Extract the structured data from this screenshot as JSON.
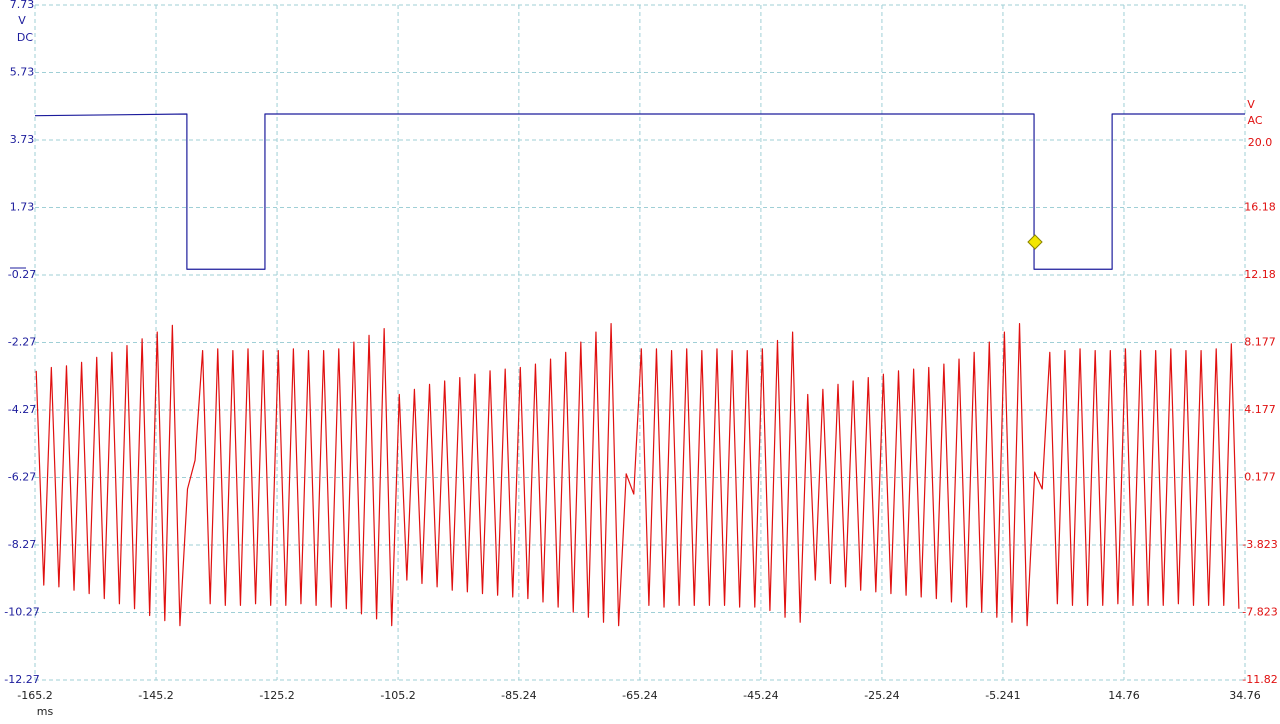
{
  "chart_data": {
    "type": "line",
    "xlabel": "ms",
    "y_label_lines": [
      "V",
      "DC"
    ],
    "y2_label_lines": [
      "V",
      "AC"
    ],
    "xlim": [
      -165.2,
      34.76
    ],
    "xticks": [
      -165.2,
      -145.2,
      -125.2,
      -105.2,
      -85.24,
      -65.24,
      -45.24,
      -25.24,
      -5.241,
      14.76,
      34.76
    ],
    "ylim": [
      -12.27,
      7.73
    ],
    "yticks": [
      7.73,
      5.73,
      3.73,
      1.73,
      -0.27,
      -2.27,
      -4.27,
      -6.27,
      -8.27,
      -10.27,
      -12.27
    ],
    "y2lim": [
      -11.82,
      28.18
    ],
    "y2ticks": [
      {
        "value": 20,
        "label": "20.0"
      },
      16.18,
      12.18,
      8.177,
      4.177,
      0.177,
      -3.823,
      -7.823,
      -11.82
    ],
    "grid": true,
    "series": [
      {
        "color": "#1c1c9c",
        "x": [
          -165.2,
          -140.1,
          -140.1,
          -127.2,
          -127.2,
          -0.1,
          -0.1,
          12.8,
          12.8,
          34.76
        ],
        "values": [
          4.45,
          4.5,
          -0.1,
          -0.1,
          4.5,
          4.5,
          -0.1,
          -0.1,
          4.5,
          4.5
        ]
      },
      {
        "color": "#e01010",
        "axis": "y2",
        "x": [
          -165,
          -163.75,
          -162.5,
          -161.25,
          -160,
          -158.75,
          -157.5,
          -156.25,
          -155,
          -153.75,
          -152.5,
          -151.25,
          -150,
          -148.75,
          -147.5,
          -146.25,
          -145,
          -143.75,
          -142.5,
          -141.25,
          -140,
          -138.75,
          -137.5,
          -136.25,
          -135,
          -133.75,
          -132.5,
          -131.25,
          -130,
          -128.75,
          -127.5,
          -126.25,
          -125,
          -123.75,
          -122.5,
          -121.25,
          -120,
          -118.75,
          -117.5,
          -116.25,
          -115,
          -113.75,
          -112.5,
          -111.25,
          -110,
          -108.75,
          -107.5,
          -106.25,
          -105,
          -103.75,
          -102.5,
          -101.25,
          -100,
          -98.75,
          -97.5,
          -96.25,
          -95,
          -93.75,
          -92.5,
          -91.25,
          -90,
          -88.75,
          -87.5,
          -86.25,
          -85,
          -83.75,
          -82.5,
          -81.25,
          -80,
          -78.75,
          -77.5,
          -76.25,
          -75,
          -73.75,
          -72.5,
          -71.25,
          -70,
          -68.75,
          -67.5,
          -66.25,
          -65,
          -63.75,
          -62.5,
          -61.25,
          -60,
          -58.75,
          -57.5,
          -56.25,
          -55,
          -53.75,
          -52.5,
          -51.25,
          -50,
          -48.75,
          -47.5,
          -46.25,
          -45,
          -43.75,
          -42.5,
          -41.25,
          -40,
          -38.75,
          -37.5,
          -36.25,
          -35,
          -33.75,
          -32.5,
          -31.25,
          -30,
          -28.75,
          -27.5,
          -26.25,
          -25,
          -23.75,
          -22.5,
          -21.25,
          -20,
          -18.75,
          -17.5,
          -16.25,
          -15,
          -13.75,
          -12.5,
          -11.25,
          -10,
          -8.75,
          -7.5,
          -6.25,
          -5,
          -3.75,
          -2.5,
          -1.25,
          0,
          1.25,
          2.5,
          3.75,
          5,
          6.25,
          7.5,
          8.75,
          10,
          11.25,
          12.5,
          13.75,
          15,
          16.25,
          17.5,
          18.75,
          20,
          21.25,
          22.5,
          23.75,
          25,
          26.25,
          27.5,
          28.75,
          30,
          31.25,
          32.5,
          33.75
        ],
        "values": [
          6.5,
          -6.2,
          6.7,
          -6.3,
          6.8,
          -6.5,
          7.0,
          -6.7,
          7.3,
          -7.0,
          7.6,
          -7.3,
          8.0,
          -7.6,
          8.4,
          -8.0,
          8.8,
          -8.3,
          9.2,
          -8.6,
          -0.5,
          1.2,
          7.7,
          -7.3,
          7.8,
          -7.4,
          7.7,
          -7.4,
          7.8,
          -7.3,
          7.7,
          -7.4,
          7.7,
          -7.4,
          7.8,
          -7.3,
          7.7,
          -7.4,
          7.7,
          -7.5,
          7.8,
          -7.6,
          8.2,
          -7.9,
          8.6,
          -8.2,
          9.0,
          -8.6,
          5.1,
          -5.9,
          5.4,
          -6.1,
          5.7,
          -6.3,
          5.9,
          -6.5,
          6.1,
          -6.6,
          6.3,
          -6.7,
          6.5,
          -6.8,
          6.6,
          -6.9,
          6.7,
          -7.0,
          6.9,
          -7.2,
          7.2,
          -7.5,
          7.6,
          -7.8,
          8.2,
          -8.1,
          8.8,
          -8.4,
          9.3,
          -8.6,
          0.4,
          -0.8,
          7.8,
          -7.4,
          7.8,
          -7.5,
          7.7,
          -7.4,
          7.8,
          -7.4,
          7.7,
          -7.4,
          7.8,
          -7.4,
          7.7,
          -7.5,
          7.7,
          -7.5,
          7.8,
          -7.7,
          8.3,
          -8.1,
          8.8,
          -8.4,
          5.1,
          -5.9,
          5.4,
          -6.1,
          5.7,
          -6.3,
          5.9,
          -6.5,
          6.1,
          -6.6,
          6.3,
          -6.7,
          6.5,
          -6.8,
          6.6,
          -6.9,
          6.7,
          -7.0,
          6.9,
          -7.2,
          7.2,
          -7.5,
          7.6,
          -7.8,
          8.2,
          -8.1,
          8.8,
          -8.4,
          9.3,
          -8.6,
          0.5,
          -0.5,
          7.6,
          -7.3,
          7.7,
          -7.4,
          7.8,
          -7.4,
          7.7,
          -7.4,
          7.7,
          -7.3,
          7.8,
          -7.4,
          7.7,
          -7.4,
          7.7,
          -7.4,
          7.8,
          -7.3,
          7.7,
          -7.4,
          7.7,
          -7.4,
          7.8,
          -7.4,
          8.1,
          -7.6
        ]
      }
    ]
  }
}
